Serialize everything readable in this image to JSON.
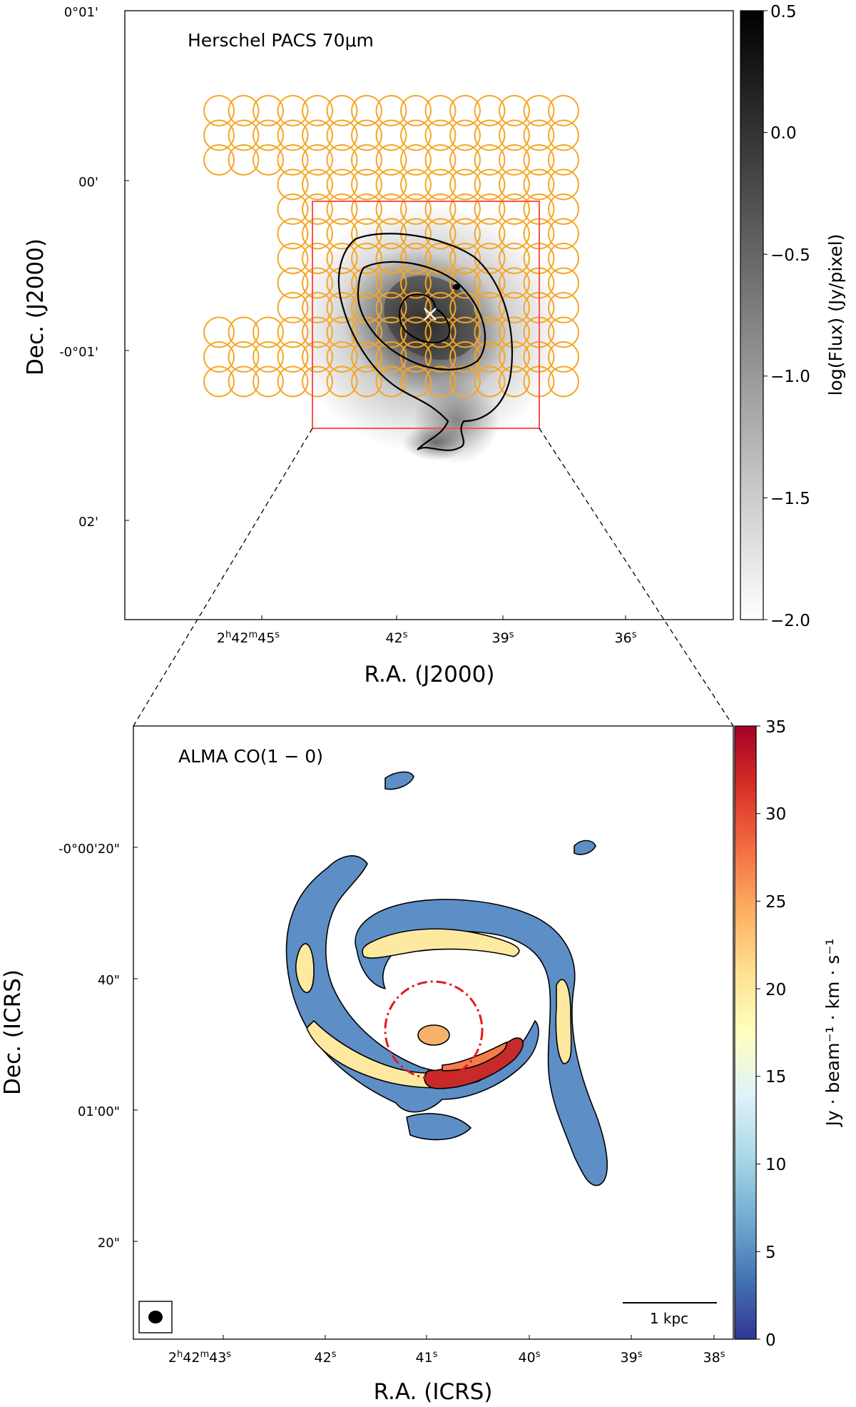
{
  "chart_data": [
    {
      "type": "heatmap",
      "panel": "top",
      "title": "Herschel PACS  70μm",
      "xlabel": "R.A. (J2000)",
      "ylabel": "Dec. (J2000)",
      "x_ticks": [
        "2h42m45s",
        "42s",
        "39s",
        "36s"
      ],
      "y_ticks": [
        "0°01'",
        "00'",
        "-0°01'",
        "02'"
      ],
      "colorbar": {
        "label": "log(Flux) (Jy/pixel)",
        "range": [
          -2.0,
          0.5
        ],
        "ticks": [
          "0.5",
          "0.0",
          "−0.5",
          "−1.0",
          "−1.5",
          "−2.0"
        ],
        "colormap": "gray_r",
        "cmap_colors": [
          "#ffffff",
          "#000000"
        ]
      },
      "overlay": "grid of circular apertures covering the galaxy",
      "aperture_color": "#f5a623",
      "aperture_rows": [
        [
          0,
          14
        ],
        [
          0,
          14
        ],
        [
          0,
          14
        ],
        [
          3,
          14
        ],
        [
          3,
          14
        ],
        [
          3,
          14
        ],
        [
          3,
          14
        ],
        [
          3,
          14
        ],
        [
          3,
          14
        ],
        [
          0,
          14
        ],
        [
          0,
          14
        ],
        [
          0,
          14
        ]
      ],
      "box_color": "#ff5050",
      "center_marker": "x"
    },
    {
      "type": "heatmap",
      "panel": "bottom",
      "title": "ALMA  CO(1 − 0)",
      "xlabel": "R.A. (ICRS)",
      "ylabel": "Dec. (ICRS)",
      "x_ticks": [
        "2h42m43s",
        "42s",
        "41s",
        "40s",
        "39s",
        "38s"
      ],
      "y_ticks": [
        "-0°00'20\"",
        "40\"",
        "01'00\"",
        "20\""
      ],
      "colorbar": {
        "label": "Jy · beam⁻¹ · km · s⁻¹",
        "range": [
          0,
          35
        ],
        "ticks": [
          "35",
          "30",
          "25",
          "20",
          "15",
          "10",
          "5",
          "0"
        ],
        "colormap": "RdYlBu_r",
        "cmap_colors": [
          "#313695",
          "#4575b4",
          "#74add1",
          "#abd9e9",
          "#e0f3f8",
          "#ffffbf",
          "#fee090",
          "#fdae61",
          "#f46d43",
          "#d73027",
          "#a50026"
        ]
      },
      "scale_bar": "1 kpc",
      "circle_color": "#e31a1c",
      "beam": "ellipse"
    }
  ]
}
